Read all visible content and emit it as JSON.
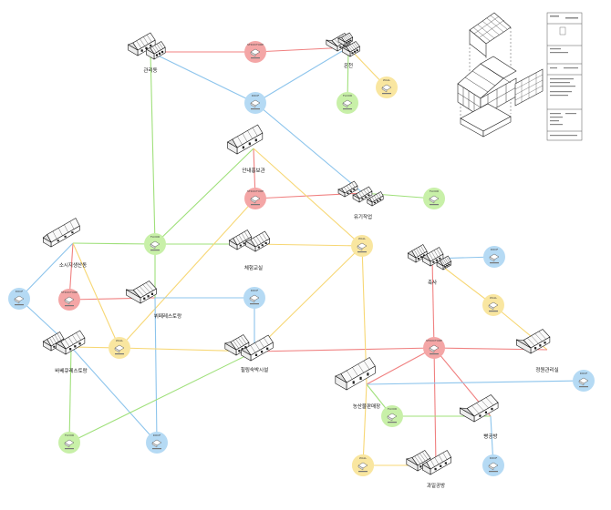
{
  "colors": {
    "red": "#f08080",
    "green": "#9fe07a",
    "blue": "#8cc4ec",
    "yellow": "#f7d774",
    "red_fill": "#f4a6a6",
    "green_fill": "#c8f0a8",
    "blue_fill": "#b5daf4",
    "yellow_fill": "#f9e6a0"
  },
  "buildings": [
    {
      "id": "b1",
      "label": "관리동"
    },
    {
      "id": "b2",
      "label": "온천"
    },
    {
      "id": "b3",
      "label": "안내홍보관"
    },
    {
      "id": "b4",
      "label": "유기작업"
    },
    {
      "id": "b5",
      "label": "소시지생산동"
    },
    {
      "id": "b6",
      "label": "체험교실"
    },
    {
      "id": "b7",
      "label": "축사"
    },
    {
      "id": "b8",
      "label": "뷔페레스토랑"
    },
    {
      "id": "b9",
      "label": "바베큐레스토랑"
    },
    {
      "id": "b10",
      "label": "힐링숙박시설"
    },
    {
      "id": "b11",
      "label": "정원관리실"
    },
    {
      "id": "b12",
      "label": "농산물판매장"
    },
    {
      "id": "b13",
      "label": "빵공방"
    },
    {
      "id": "b14",
      "label": "과일공방"
    }
  ],
  "nodes": [
    {
      "id": "n_s1",
      "color": "red",
      "tag": "STRUCTURE",
      "sub": ""
    },
    {
      "id": "n_s2",
      "color": "red",
      "tag": "STRUCTURE",
      "sub": ""
    },
    {
      "id": "n_s3",
      "color": "red",
      "tag": "STRUCTURE",
      "sub": ""
    },
    {
      "id": "n_s4",
      "color": "red",
      "tag": "STRUCTURE",
      "sub": ""
    },
    {
      "id": "n_w1",
      "color": "yellow",
      "tag": "WALL",
      "sub": ""
    },
    {
      "id": "n_w2",
      "color": "yellow",
      "tag": "WALL",
      "sub": ""
    },
    {
      "id": "n_w3",
      "color": "yellow",
      "tag": "WALL",
      "sub": ""
    },
    {
      "id": "n_w4",
      "color": "yellow",
      "tag": "WALL",
      "sub": ""
    },
    {
      "id": "n_w5",
      "color": "yellow",
      "tag": "WALL",
      "sub": ""
    },
    {
      "id": "n_w6",
      "color": "yellow",
      "tag": "WALL",
      "sub": ""
    },
    {
      "id": "n_r1",
      "color": "blue",
      "tag": "ROOF",
      "sub": ""
    },
    {
      "id": "n_r2",
      "color": "blue",
      "tag": "ROOF",
      "sub": ""
    },
    {
      "id": "n_r3",
      "color": "blue",
      "tag": "ROOF",
      "sub": ""
    },
    {
      "id": "n_r4",
      "color": "blue",
      "tag": "ROOF",
      "sub": ""
    },
    {
      "id": "n_r5",
      "color": "blue",
      "tag": "ROOF",
      "sub": ""
    },
    {
      "id": "n_r6",
      "color": "blue",
      "tag": "ROOF",
      "sub": ""
    },
    {
      "id": "n_r7",
      "color": "blue",
      "tag": "ROOF",
      "sub": ""
    },
    {
      "id": "n_f1",
      "color": "green",
      "tag": "FLOOR",
      "sub": ""
    },
    {
      "id": "n_f2",
      "color": "green",
      "tag": "FLOOR",
      "sub": ""
    },
    {
      "id": "n_f3",
      "color": "green",
      "tag": "FLOOR",
      "sub": ""
    },
    {
      "id": "n_f4",
      "color": "green",
      "tag": "FLOOR",
      "sub": ""
    },
    {
      "id": "n_f5",
      "color": "green",
      "tag": "FLOOR",
      "sub": ""
    }
  ],
  "edges": [
    {
      "from": "b1",
      "to": "n_s1",
      "color": "red"
    },
    {
      "from": "n_s1",
      "to": "b2",
      "color": "red"
    },
    {
      "from": "b1",
      "to": "n_r1",
      "color": "blue"
    },
    {
      "from": "n_r1",
      "to": "b2",
      "color": "blue"
    },
    {
      "from": "b1",
      "to": "n_f1",
      "color": "green"
    },
    {
      "from": "n_r1",
      "to": "b4",
      "color": "blue"
    },
    {
      "from": "b2",
      "to": "n_f2",
      "color": "green"
    },
    {
      "from": "b2",
      "to": "n_w1",
      "color": "yellow"
    },
    {
      "from": "b3",
      "to": "n_s2",
      "color": "red"
    },
    {
      "from": "n_s2",
      "to": "b4",
      "color": "red"
    },
    {
      "from": "b3",
      "to": "n_f1",
      "color": "green"
    },
    {
      "from": "b3",
      "to": "n_w2",
      "color": "yellow"
    },
    {
      "from": "b4",
      "to": "n_f3",
      "color": "green"
    },
    {
      "from": "b5",
      "to": "n_f1",
      "color": "green"
    },
    {
      "from": "n_f1",
      "to": "b6",
      "color": "green"
    },
    {
      "from": "b5",
      "to": "n_s3",
      "color": "red"
    },
    {
      "from": "n_s3",
      "to": "b8",
      "color": "red"
    },
    {
      "from": "b5",
      "to": "n_r2",
      "color": "blue"
    },
    {
      "from": "n_r2",
      "to": "b9",
      "color": "blue"
    },
    {
      "from": "b5",
      "to": "n_w3",
      "color": "yellow"
    },
    {
      "from": "b6",
      "to": "n_w2",
      "color": "yellow"
    },
    {
      "from": "n_s2",
      "to": "n_w3",
      "color": "yellow"
    },
    {
      "from": "b8",
      "to": "n_r3",
      "color": "blue"
    },
    {
      "from": "b8",
      "to": "n_r4",
      "color": "blue"
    },
    {
      "from": "b8",
      "to": "n_f1",
      "color": "green"
    },
    {
      "from": "b9",
      "to": "n_w3",
      "color": "yellow"
    },
    {
      "from": "b9",
      "to": "n_f4",
      "color": "green"
    },
    {
      "from": "b9",
      "to": "n_r4",
      "color": "blue"
    },
    {
      "from": "n_w3",
      "to": "b10",
      "color": "yellow"
    },
    {
      "from": "b10",
      "to": "n_r3",
      "color": "blue"
    },
    {
      "from": "b10",
      "to": "n_f4",
      "color": "green"
    },
    {
      "from": "b10",
      "to": "n_w2",
      "color": "yellow"
    },
    {
      "from": "b10",
      "to": "n_s4",
      "color": "red"
    },
    {
      "from": "n_w2",
      "to": "b12",
      "color": "yellow"
    },
    {
      "from": "b7",
      "to": "n_r5",
      "color": "blue"
    },
    {
      "from": "b7",
      "to": "n_w4",
      "color": "yellow"
    },
    {
      "from": "n_w4",
      "to": "b11",
      "color": "yellow"
    },
    {
      "from": "b7",
      "to": "n_s4",
      "color": "red"
    },
    {
      "from": "n_s4",
      "to": "b11",
      "color": "red"
    },
    {
      "from": "n_s4",
      "to": "b12",
      "color": "red"
    },
    {
      "from": "n_s4",
      "to": "b13",
      "color": "red"
    },
    {
      "from": "n_s4",
      "to": "b14",
      "color": "red"
    },
    {
      "from": "b12",
      "to": "n_r6",
      "color": "blue"
    },
    {
      "from": "b12",
      "to": "n_f5",
      "color": "green"
    },
    {
      "from": "n_f5",
      "to": "b13",
      "color": "green"
    },
    {
      "from": "b12",
      "to": "n_w5",
      "color": "yellow"
    },
    {
      "from": "n_w5",
      "to": "b14",
      "color": "yellow"
    },
    {
      "from": "b14",
      "to": "n_w6",
      "color": "yellow"
    },
    {
      "from": "b13",
      "to": "n_r7",
      "color": "blue"
    }
  ],
  "title_block": {
    "lines": [
      "",
      "",
      "",
      "",
      "",
      "",
      "",
      "",
      "",
      ""
    ]
  }
}
